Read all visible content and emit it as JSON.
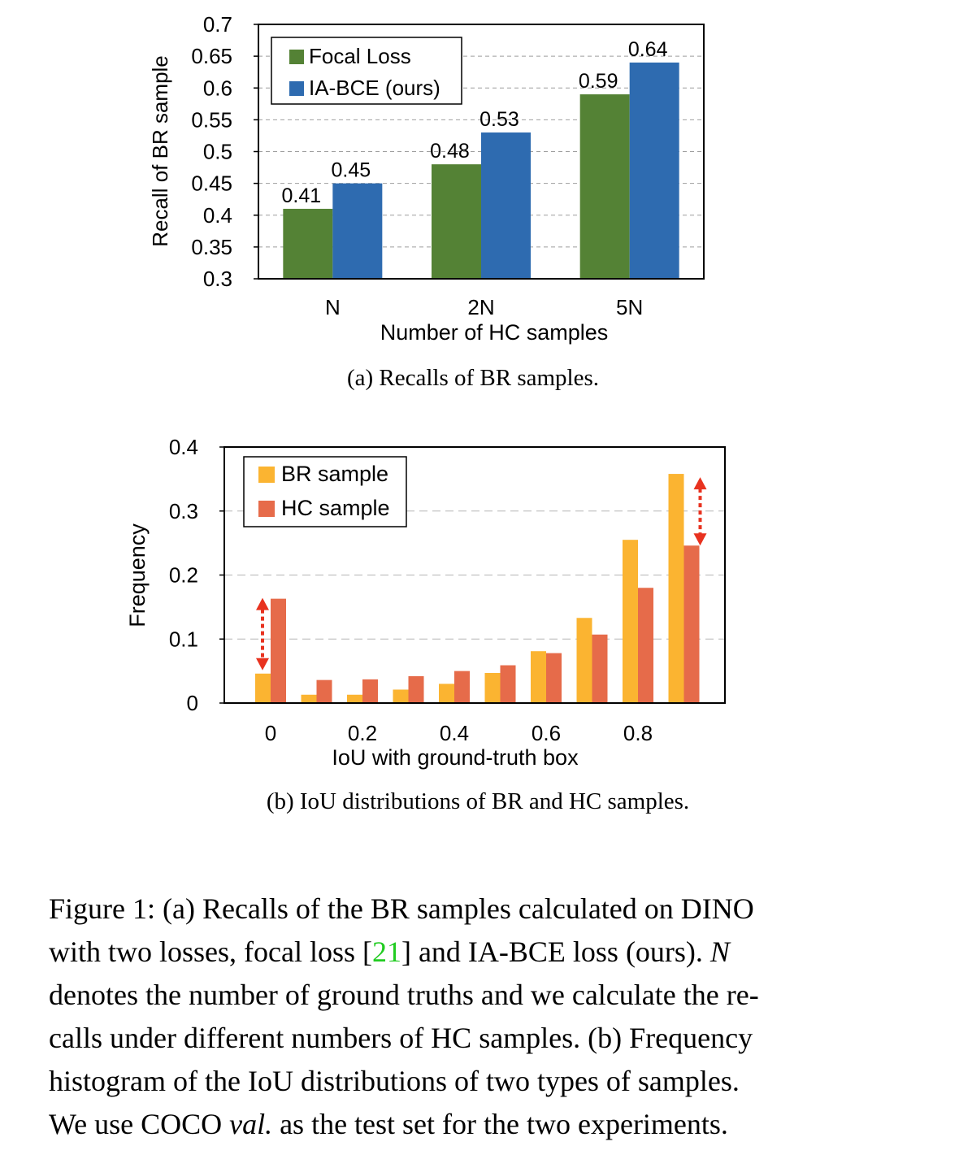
{
  "chart_data": [
    {
      "type": "bar",
      "ylabel": "Recall of BR sample",
      "xlabel": "Number of HC samples",
      "categories": [
        "N",
        "2N",
        "5N"
      ],
      "ylim": [
        0.3,
        0.7
      ],
      "yticks": [
        "0.3",
        "0.35",
        "0.4",
        "0.45",
        "0.5",
        "0.55",
        "0.6",
        "0.65",
        "0.7"
      ],
      "grid": "horizontal dashed",
      "legend": "top-left",
      "series": [
        {
          "name": "Focal Loss",
          "color": "#548235",
          "values": [
            0.41,
            0.48,
            0.59
          ],
          "labels": [
            "0.41",
            "0.48",
            "0.59"
          ]
        },
        {
          "name": "IA-BCE (ours)",
          "color": "#2e6bb0",
          "values": [
            0.45,
            0.53,
            0.64
          ],
          "labels": [
            "0.45",
            "0.53",
            "0.64"
          ]
        }
      ],
      "subcaption": "(a) Recalls of BR samples."
    },
    {
      "type": "bar",
      "ylabel": "Frequency",
      "xlabel": "IoU with ground-truth box",
      "x": [
        0,
        0.1,
        0.2,
        0.3,
        0.4,
        0.5,
        0.6,
        0.7,
        0.8,
        0.9
      ],
      "xticks": [
        "0",
        "0.2",
        "0.4",
        "0.6",
        "0.8"
      ],
      "ylim": [
        0,
        0.4
      ],
      "yticks": [
        "0",
        "0.1",
        "0.2",
        "0.3",
        "0.4"
      ],
      "grid": "horizontal dashed",
      "legend": "top-left",
      "series": [
        {
          "name": "BR sample",
          "color": "#fbb431",
          "values": [
            0.046,
            0.013,
            0.013,
            0.021,
            0.03,
            0.047,
            0.081,
            0.133,
            0.255,
            0.358
          ]
        },
        {
          "name": "HC sample",
          "color": "#e66b4a",
          "values": [
            0.163,
            0.036,
            0.037,
            0.042,
            0.05,
            0.059,
            0.078,
            0.107,
            0.18,
            0.246
          ]
        }
      ],
      "annotations": [
        "double-headed red dashed arrow at IoU 0",
        "double-headed red dashed arrow at IoU 0.9"
      ],
      "arrow_color": "#e8321f",
      "subcaption": "(b) IoU distributions of BR and HC samples."
    }
  ],
  "caption": {
    "lines": [
      [
        "Figure 1: (a) Recalls of the BR samples calculated on DINO"
      ],
      [
        "with two losses, focal loss [",
        "21",
        "] and IA-BCE loss (ours).  ",
        "N"
      ],
      [
        "denotes the number of ground truths and we calculate the re-"
      ],
      [
        "calls under different numbers of HC samples. (b) Frequency"
      ],
      [
        "histogram of the IoU distributions of two types of samples."
      ],
      [
        "We use COCO ",
        "val.",
        " as the test set for the two experiments."
      ]
    ],
    "citation_color": "#22cc22"
  }
}
